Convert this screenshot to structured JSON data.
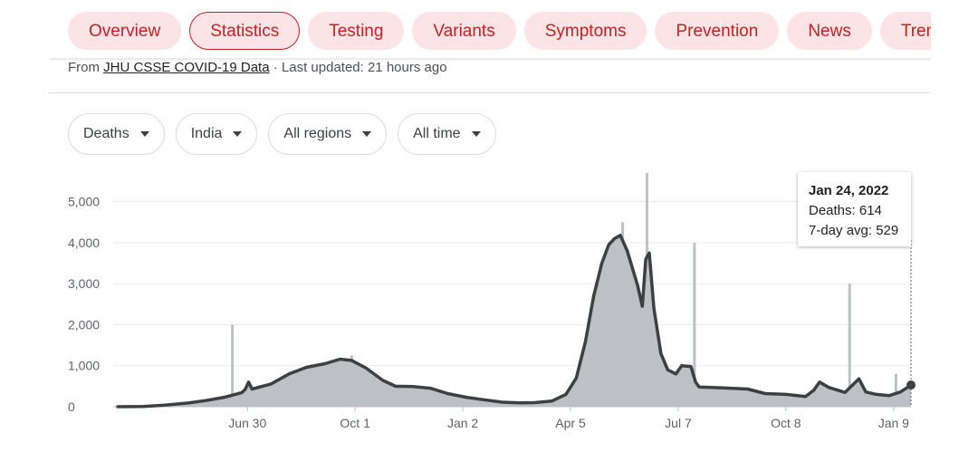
{
  "tabs": [
    {
      "label": "Overview",
      "active": false
    },
    {
      "label": "Statistics",
      "active": true
    },
    {
      "label": "Testing",
      "active": false
    },
    {
      "label": "Variants",
      "active": false
    },
    {
      "label": "Symptoms",
      "active": false
    },
    {
      "label": "Prevention",
      "active": false
    },
    {
      "label": "News",
      "active": false
    },
    {
      "label": "Trends",
      "active": false
    }
  ],
  "source": {
    "prefix": "From ",
    "link": "JHU CSSE COVID-19 Data",
    "suffix": " · Last updated: 21 hours ago"
  },
  "filters": {
    "metric": "Deaths",
    "country": "India",
    "region": "All regions",
    "period": "All time"
  },
  "tooltip": {
    "date": "Jan 24, 2022",
    "deaths": "Deaths: 614",
    "avg": "7-day avg: 529"
  },
  "colors": {
    "accent": "#c5221f",
    "tab_bg": "#fbe3e6",
    "bars": "#bdc1c6",
    "line": "#3c4043"
  },
  "chart_data": {
    "type": "area",
    "title": "",
    "xlabel": "",
    "ylabel": "",
    "ylim": [
      0,
      5700
    ],
    "yticks": [
      0,
      1000,
      2000,
      3000,
      4000,
      5000
    ],
    "ytick_labels": [
      "0",
      "1,000",
      "2,000",
      "3,000",
      "4,000",
      "5,000"
    ],
    "xlim": [
      "2020-03-10",
      "2022-01-24"
    ],
    "xticks": [
      "2020-06-30",
      "2020-10-01",
      "2021-01-02",
      "2021-04-05",
      "2021-07-07",
      "2021-10-08",
      "2022-01-09"
    ],
    "xtick_labels": [
      "Jun 30",
      "Oct 1",
      "Jan 2",
      "Apr 5",
      "Jul 7",
      "Oct 8",
      "Jan 9"
    ],
    "grid": true,
    "highlight": {
      "date": "2022-01-24",
      "deaths": 614,
      "avg7": 529
    },
    "series": [
      {
        "name": "7-day avg",
        "points": [
          [
            "2020-03-10",
            0
          ],
          [
            "2020-04-01",
            5
          ],
          [
            "2020-04-20",
            40
          ],
          [
            "2020-05-10",
            90
          ],
          [
            "2020-05-25",
            150
          ],
          [
            "2020-06-10",
            230
          ],
          [
            "2020-06-25",
            340
          ],
          [
            "2020-06-28",
            420
          ],
          [
            "2020-07-01",
            600
          ],
          [
            "2020-07-04",
            430
          ],
          [
            "2020-07-20",
            550
          ],
          [
            "2020-08-05",
            800
          ],
          [
            "2020-08-20",
            960
          ],
          [
            "2020-09-05",
            1050
          ],
          [
            "2020-09-18",
            1160
          ],
          [
            "2020-09-28",
            1130
          ],
          [
            "2020-10-10",
            950
          ],
          [
            "2020-10-25",
            640
          ],
          [
            "2020-11-05",
            500
          ],
          [
            "2020-11-20",
            490
          ],
          [
            "2020-12-05",
            450
          ],
          [
            "2020-12-20",
            320
          ],
          [
            "2021-01-05",
            230
          ],
          [
            "2021-01-20",
            170
          ],
          [
            "2021-02-05",
            110
          ],
          [
            "2021-02-20",
            95
          ],
          [
            "2021-03-05",
            100
          ],
          [
            "2021-03-20",
            140
          ],
          [
            "2021-04-01",
            300
          ],
          [
            "2021-04-10",
            700
          ],
          [
            "2021-04-18",
            1600
          ],
          [
            "2021-04-25",
            2700
          ],
          [
            "2021-05-02",
            3500
          ],
          [
            "2021-05-08",
            3950
          ],
          [
            "2021-05-13",
            4100
          ],
          [
            "2021-05-18",
            4180
          ],
          [
            "2021-05-24",
            3800
          ],
          [
            "2021-06-02",
            2950
          ],
          [
            "2021-06-06",
            2450
          ],
          [
            "2021-06-09",
            3600
          ],
          [
            "2021-06-12",
            3750
          ],
          [
            "2021-06-16",
            2400
          ],
          [
            "2021-06-22",
            1300
          ],
          [
            "2021-06-28",
            900
          ],
          [
            "2021-07-05",
            800
          ],
          [
            "2021-07-10",
            1000
          ],
          [
            "2021-07-18",
            980
          ],
          [
            "2021-07-22",
            600
          ],
          [
            "2021-07-25",
            480
          ],
          [
            "2021-08-15",
            460
          ],
          [
            "2021-09-05",
            430
          ],
          [
            "2021-09-20",
            320
          ],
          [
            "2021-10-08",
            300
          ],
          [
            "2021-10-25",
            250
          ],
          [
            "2021-11-01",
            400
          ],
          [
            "2021-11-06",
            600
          ],
          [
            "2021-11-14",
            470
          ],
          [
            "2021-11-28",
            350
          ],
          [
            "2021-12-10",
            680
          ],
          [
            "2021-12-16",
            360
          ],
          [
            "2021-12-25",
            300
          ],
          [
            "2022-01-05",
            270
          ],
          [
            "2022-01-15",
            360
          ],
          [
            "2022-01-24",
            529
          ]
        ]
      },
      {
        "name": "Deaths",
        "spikes": [
          [
            "2020-06-17",
            2000
          ],
          [
            "2020-09-28",
            1250
          ],
          [
            "2021-05-20",
            4500
          ],
          [
            "2021-06-10",
            5700
          ],
          [
            "2021-07-21",
            4000
          ],
          [
            "2021-12-02",
            3000
          ],
          [
            "2022-01-11",
            800
          ]
        ]
      }
    ]
  }
}
